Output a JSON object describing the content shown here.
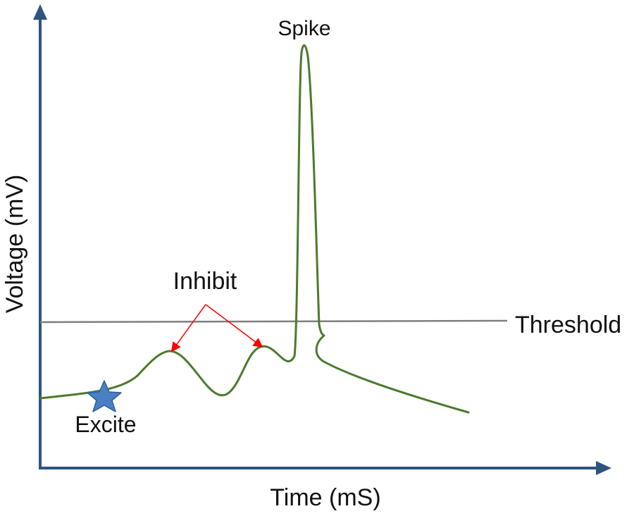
{
  "labels": {
    "spike": "Spike",
    "inhibit": "Inhibit",
    "threshold": "Threshold",
    "excite": "Excite",
    "x_axis": "Time (mS)",
    "y_axis": "Voltage (mV)"
  },
  "colors": {
    "axis": "#2e5480",
    "trace": "#4b7a2c",
    "threshold_line": "#7f7f7f",
    "inhibit_arrow": "#ff0000",
    "star_fill": "#4a7fc4",
    "star_stroke": "#2f5f9a"
  }
}
